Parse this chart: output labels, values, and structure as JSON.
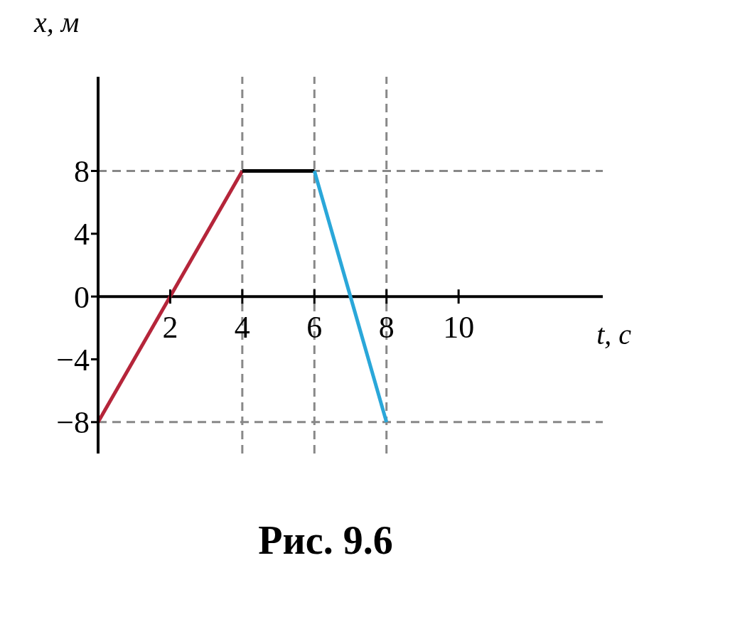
{
  "chart_data": {
    "type": "line",
    "xlabel": "t, с",
    "ylabel": "x, м",
    "annotations": [
      "Рис. 9.6"
    ],
    "xlim": [
      0,
      14
    ],
    "xticks": [
      2,
      4,
      6,
      8,
      10
    ],
    "ylim": [
      -10,
      14
    ],
    "yticks": [
      -8,
      -4,
      0,
      4,
      8
    ],
    "grid": false,
    "legend": false,
    "marker": "none",
    "line_style": "solid",
    "series": [
      {
        "color": "#b5253a",
        "x": [
          0,
          4
        ],
        "values": [
          -8,
          8
        ]
      },
      {
        "color": "#000000",
        "x": [
          4,
          6
        ],
        "values": [
          8,
          8
        ]
      },
      {
        "color": "#2aa7d9",
        "x": [
          6,
          8
        ],
        "values": [
          8,
          -8
        ]
      }
    ],
    "ref_lines": [
      {
        "axis": "y",
        "value": 8,
        "color": "#888888",
        "line_style": "dashed"
      },
      {
        "axis": "y",
        "value": -8,
        "color": "#888888",
        "line_style": "dashed"
      },
      {
        "axis": "x",
        "value": 4,
        "color": "#888888",
        "line_style": "dashed"
      },
      {
        "axis": "x",
        "value": 6,
        "color": "#888888",
        "line_style": "dashed"
      },
      {
        "axis": "x",
        "value": 8,
        "color": "#888888",
        "line_style": "dashed"
      }
    ]
  }
}
